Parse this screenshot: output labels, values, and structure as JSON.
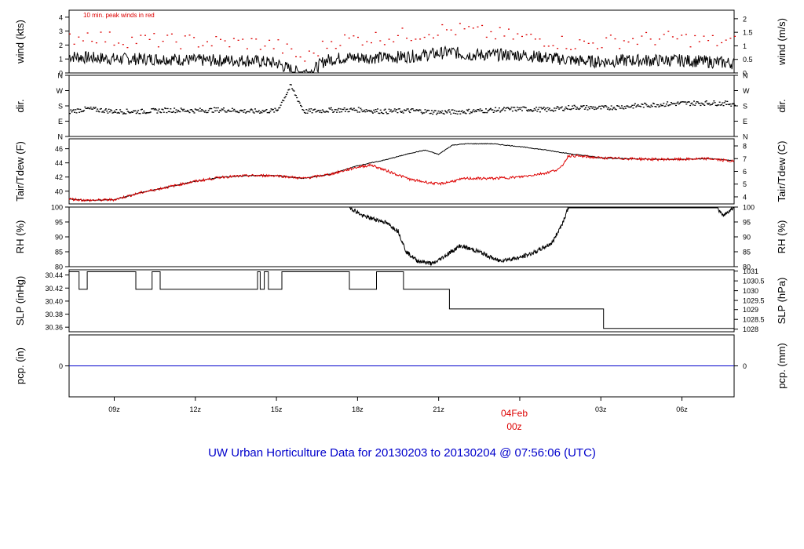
{
  "title": "UW Urban Horticulture Data for 20130203  to  20130204 @ 07:56:06  (UTC)",
  "colors": {
    "primary": "#000000",
    "accent": "#dd0000",
    "baseline": "#0000cc",
    "title": "#0000cc"
  },
  "time_axis": {
    "range_hours": [
      -16.67,
      7.93
    ],
    "ticks": [
      {
        "t": -15,
        "label": "09z"
      },
      {
        "t": -12,
        "label": "12z"
      },
      {
        "t": -9,
        "label": "15z"
      },
      {
        "t": -6,
        "label": "18z"
      },
      {
        "t": -3,
        "label": "21z"
      },
      {
        "t": 0,
        "label": ""
      },
      {
        "t": 3,
        "label": "03z"
      },
      {
        "t": 6,
        "label": "06z"
      }
    ],
    "day_marker": {
      "t": 0,
      "date": "04Feb",
      "time": "00z"
    }
  },
  "chart_data": [
    {
      "id": "wind",
      "type": "line",
      "annotation": "10 min. peak winds in red",
      "ylabel_left": "wind (kts)",
      "ylabel_right": "wind (m/s)",
      "ylim": [
        0,
        4.5
      ],
      "left_ticks": [
        {
          "v": 0,
          "label": "0"
        },
        {
          "v": 1,
          "label": "1"
        },
        {
          "v": 2,
          "label": "2"
        },
        {
          "v": 3,
          "label": "3"
        },
        {
          "v": 4,
          "label": "4"
        }
      ],
      "right_ticks": [
        {
          "v": 0,
          "label": "0"
        },
        {
          "v": 0.972,
          "label": "0.5"
        },
        {
          "v": 1.944,
          "label": "1"
        },
        {
          "v": 2.916,
          "label": "1.5"
        },
        {
          "v": 3.888,
          "label": "2"
        }
      ],
      "series": [
        {
          "color": "#000000",
          "style": "line",
          "points": [
            [
              -16.67,
              1.2
            ],
            [
              -16,
              1.1
            ],
            [
              -15,
              1.0
            ],
            [
              -14,
              1.0
            ],
            [
              -13,
              1.0
            ],
            [
              -12,
              0.9
            ],
            [
              -11,
              0.9
            ],
            [
              -10,
              0.9
            ],
            [
              -9.5,
              0.8
            ],
            [
              -9,
              0.7
            ],
            [
              -8.3,
              0.1
            ],
            [
              -7.7,
              0.1
            ],
            [
              -7.2,
              0.9
            ],
            [
              -6.5,
              1.1
            ],
            [
              -6,
              1.1
            ],
            [
              -5,
              1.1
            ],
            [
              -4,
              1.2
            ],
            [
              -3,
              1.4
            ],
            [
              -2.5,
              1.5
            ],
            [
              -2,
              1.3
            ],
            [
              -1,
              1.3
            ],
            [
              0,
              1.3
            ],
            [
              1,
              1.1
            ],
            [
              2,
              0.9
            ],
            [
              3,
              0.8
            ],
            [
              4,
              0.9
            ],
            [
              5,
              0.9
            ],
            [
              6,
              0.9
            ],
            [
              7,
              0.8
            ],
            [
              7.93,
              0.7
            ]
          ]
        },
        {
          "color": "#dd0000",
          "style": "dots",
          "points": [
            [
              -16.67,
              2.5
            ],
            [
              -16,
              2.8
            ],
            [
              -15,
              2.4
            ],
            [
              -14,
              2.4
            ],
            [
              -13,
              2.3
            ],
            [
              -12,
              2.3
            ],
            [
              -11,
              2.2
            ],
            [
              -10,
              2.2
            ],
            [
              -9,
              2.0
            ],
            [
              -8,
              1.0
            ],
            [
              -7,
              2.3
            ],
            [
              -6,
              2.5
            ],
            [
              -5,
              2.6
            ],
            [
              -4,
              2.8
            ],
            [
              -3,
              3.1
            ],
            [
              -2,
              3.1
            ],
            [
              -1,
              2.8
            ],
            [
              0,
              2.6
            ],
            [
              1,
              2.4
            ],
            [
              2,
              2.1
            ],
            [
              3,
              2.2
            ],
            [
              4,
              2.4
            ],
            [
              5,
              2.5
            ],
            [
              6,
              2.5
            ],
            [
              7,
              2.3
            ],
            [
              7.93,
              2.2
            ]
          ]
        }
      ]
    },
    {
      "id": "dir",
      "type": "scatter",
      "ylabel_left": "dir.",
      "ylabel_right": "dir.",
      "ylim": [
        0,
        360
      ],
      "left_ticks": [
        {
          "v": 0,
          "label": "N"
        },
        {
          "v": 90,
          "label": "E"
        },
        {
          "v": 180,
          "label": "S"
        },
        {
          "v": 270,
          "label": "W"
        },
        {
          "v": 360,
          "label": "N"
        }
      ],
      "right_ticks": [
        {
          "v": 0,
          "label": "N"
        },
        {
          "v": 90,
          "label": "E"
        },
        {
          "v": 180,
          "label": "S"
        },
        {
          "v": 270,
          "label": "W"
        },
        {
          "v": 360,
          "label": "N"
        }
      ],
      "series": [
        {
          "color": "#000000",
          "style": "dots",
          "points": [
            [
              -16.67,
              150
            ],
            [
              -16,
              165
            ],
            [
              -15,
              150
            ],
            [
              -14,
              150
            ],
            [
              -13,
              158
            ],
            [
              -12,
              155
            ],
            [
              -11,
              160
            ],
            [
              -10,
              150
            ],
            [
              -9,
              155
            ],
            [
              -8.5,
              300
            ],
            [
              -8,
              150
            ],
            [
              -7,
              158
            ],
            [
              -6,
              160
            ],
            [
              -5,
              150
            ],
            [
              -4,
              155
            ],
            [
              -3,
              145
            ],
            [
              -2,
              150
            ],
            [
              -1,
              158
            ],
            [
              0,
              165
            ],
            [
              1,
              160
            ],
            [
              2,
              175
            ],
            [
              3,
              170
            ],
            [
              4,
              180
            ],
            [
              5,
              190
            ],
            [
              6,
              198
            ],
            [
              7,
              200
            ],
            [
              7.93,
              195
            ]
          ]
        }
      ]
    },
    {
      "id": "temp",
      "type": "line",
      "ylabel_left": "Tair/Tdew (F)",
      "ylabel_right": "Tair/Tdew (C)",
      "ylim": [
        38.2,
        47.4
      ],
      "left_ticks": [
        {
          "v": 40,
          "label": "40"
        },
        {
          "v": 42,
          "label": "42"
        },
        {
          "v": 44,
          "label": "44"
        },
        {
          "v": 46,
          "label": "46"
        }
      ],
      "right_ticks": [
        {
          "v": 39.2,
          "label": "4"
        },
        {
          "v": 41.0,
          "label": "5"
        },
        {
          "v": 42.8,
          "label": "6"
        },
        {
          "v": 44.6,
          "label": "7"
        },
        {
          "v": 46.4,
          "label": "8"
        }
      ],
      "series": [
        {
          "color": "#000000",
          "style": "line",
          "name": "Tair",
          "points": [
            [
              -16.67,
              38.9
            ],
            [
              -16,
              38.7
            ],
            [
              -15,
              38.8
            ],
            [
              -14,
              39.8
            ],
            [
              -13,
              40.6
            ],
            [
              -12,
              41.4
            ],
            [
              -11,
              42.0
            ],
            [
              -10,
              42.2
            ],
            [
              -9,
              42.2
            ],
            [
              -8,
              41.8
            ],
            [
              -7,
              42.4
            ],
            [
              -6,
              43.6
            ],
            [
              -5,
              44.4
            ],
            [
              -4,
              45.4
            ],
            [
              -3.5,
              45.8
            ],
            [
              -3,
              45.2
            ],
            [
              -2.5,
              46.5
            ],
            [
              -2,
              46.7
            ],
            [
              -1,
              46.7
            ],
            [
              0,
              46.3
            ],
            [
              1,
              45.8
            ],
            [
              2,
              45.2
            ],
            [
              2.5,
              45.0
            ],
            [
              3,
              44.7
            ],
            [
              4,
              44.6
            ],
            [
              5,
              44.5
            ],
            [
              6,
              44.5
            ],
            [
              7,
              44.6
            ],
            [
              7.93,
              44.3
            ]
          ]
        },
        {
          "color": "#dd0000",
          "style": "line",
          "name": "Tdew",
          "points": [
            [
              -16.67,
              38.9
            ],
            [
              -16,
              38.7
            ],
            [
              -15,
              38.8
            ],
            [
              -14,
              39.8
            ],
            [
              -13,
              40.6
            ],
            [
              -12,
              41.4
            ],
            [
              -11,
              42.0
            ],
            [
              -10,
              42.2
            ],
            [
              -9,
              42.2
            ],
            [
              -8,
              41.8
            ],
            [
              -7,
              42.4
            ],
            [
              -6,
              43.4
            ],
            [
              -5.5,
              43.7
            ],
            [
              -5,
              43.0
            ],
            [
              -4,
              41.6
            ],
            [
              -3,
              41.0
            ],
            [
              -2,
              41.8
            ],
            [
              -1,
              41.8
            ],
            [
              0,
              42.0
            ],
            [
              1,
              42.6
            ],
            [
              1.5,
              43.2
            ],
            [
              1.8,
              45.0
            ],
            [
              2,
              45.0
            ],
            [
              3,
              44.7
            ],
            [
              4,
              44.6
            ],
            [
              5,
              44.5
            ],
            [
              6,
              44.5
            ],
            [
              7,
              44.6
            ],
            [
              7.93,
              44.2
            ]
          ]
        }
      ]
    },
    {
      "id": "rh",
      "type": "line",
      "ylabel_left": "RH (%)",
      "ylabel_right": "RH (%)",
      "ylim": [
        80,
        100
      ],
      "left_ticks": [
        {
          "v": 80,
          "label": "80"
        },
        {
          "v": 85,
          "label": "85"
        },
        {
          "v": 90,
          "label": "90"
        },
        {
          "v": 95,
          "label": "95"
        },
        {
          "v": 100,
          "label": "100"
        }
      ],
      "right_ticks": [
        {
          "v": 80,
          "label": "80"
        },
        {
          "v": 85,
          "label": "85"
        },
        {
          "v": 90,
          "label": "90"
        },
        {
          "v": 95,
          "label": "95"
        },
        {
          "v": 100,
          "label": "100"
        }
      ],
      "series": [
        {
          "color": "#000000",
          "style": "line",
          "points": [
            [
              -6.3,
              100
            ],
            [
              -5.8,
              97
            ],
            [
              -5,
              95
            ],
            [
              -4.5,
              92
            ],
            [
              -4.2,
              85
            ],
            [
              -3.8,
              82
            ],
            [
              -3.2,
              81
            ],
            [
              -2.7,
              84
            ],
            [
              -2.2,
              87
            ],
            [
              -1.5,
              85
            ],
            [
              -0.8,
              82
            ],
            [
              0,
              83
            ],
            [
              0.6,
              85
            ],
            [
              1.2,
              88
            ],
            [
              1.6,
              95
            ],
            [
              1.8,
              100
            ],
            [
              7.3,
              100
            ],
            [
              7.5,
              97
            ],
            [
              7.93,
              100
            ]
          ]
        }
      ]
    },
    {
      "id": "slp",
      "type": "line",
      "ylabel_left": "SLP (inHg)",
      "ylabel_right": "SLP (hPa)",
      "ylim": [
        30.353,
        30.448
      ],
      "left_ticks": [
        {
          "v": 30.36,
          "label": "30.36"
        },
        {
          "v": 30.38,
          "label": "30.38"
        },
        {
          "v": 30.4,
          "label": "30.40"
        },
        {
          "v": 30.42,
          "label": "30.42"
        },
        {
          "v": 30.44,
          "label": "30.44"
        }
      ],
      "right_ticks": [
        {
          "v": 30.357,
          "label": "1028"
        },
        {
          "v": 30.372,
          "label": "1028.5"
        },
        {
          "v": 30.387,
          "label": "1029"
        },
        {
          "v": 30.401,
          "label": "1029.5"
        },
        {
          "v": 30.416,
          "label": "1030"
        },
        {
          "v": 30.431,
          "label": "1030.5"
        },
        {
          "v": 30.446,
          "label": "1031"
        }
      ],
      "series": [
        {
          "color": "#000000",
          "style": "step",
          "points": [
            [
              -16.67,
              30.445
            ],
            [
              -16.3,
              30.445
            ],
            [
              -16.3,
              30.418
            ],
            [
              -16,
              30.418
            ],
            [
              -16,
              30.445
            ],
            [
              -14.2,
              30.445
            ],
            [
              -14.2,
              30.418
            ],
            [
              -13.6,
              30.418
            ],
            [
              -13.6,
              30.445
            ],
            [
              -13.3,
              30.445
            ],
            [
              -13.3,
              30.418
            ],
            [
              -9.7,
              30.418
            ],
            [
              -9.7,
              30.445
            ],
            [
              -9.6,
              30.445
            ],
            [
              -9.6,
              30.418
            ],
            [
              -9.45,
              30.418
            ],
            [
              -9.45,
              30.445
            ],
            [
              -9.3,
              30.445
            ],
            [
              -9.3,
              30.418
            ],
            [
              -8.8,
              30.418
            ],
            [
              -8.8,
              30.445
            ],
            [
              -6.3,
              30.445
            ],
            [
              -6.3,
              30.418
            ],
            [
              -5.3,
              30.418
            ],
            [
              -5.3,
              30.445
            ],
            [
              -4.3,
              30.445
            ],
            [
              -4.3,
              30.418
            ],
            [
              -2.6,
              30.418
            ],
            [
              -2.6,
              30.388
            ],
            [
              3.1,
              30.388
            ],
            [
              3.1,
              30.358
            ],
            [
              7.93,
              30.358
            ]
          ]
        }
      ]
    },
    {
      "id": "pcp",
      "type": "line",
      "ylabel_left": "pcp. (in)",
      "ylabel_right": "pcp. (mm)",
      "ylim": [
        -1,
        1
      ],
      "left_ticks": [
        {
          "v": 0,
          "label": "0"
        }
      ],
      "right_ticks": [
        {
          "v": 0,
          "label": "0"
        }
      ],
      "series": [
        {
          "color": "#0000cc",
          "style": "line",
          "points": [
            [
              -16.67,
              0
            ],
            [
              7.93,
              0
            ]
          ]
        }
      ]
    }
  ]
}
